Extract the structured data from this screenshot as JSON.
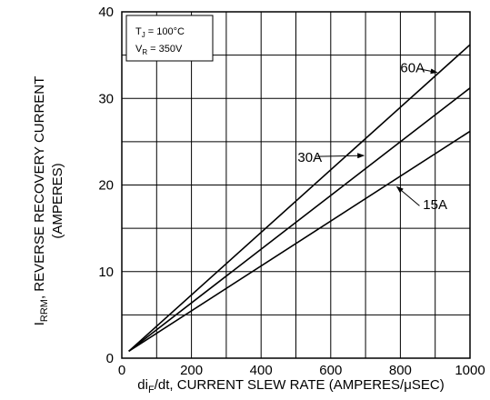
{
  "chart_data": {
    "type": "line",
    "title": "",
    "xlabel": "di_F/dt, CURRENT SLEW RATE (AMPERES/μSEC)",
    "xlabel_parts": {
      "main": "di",
      "sub": "F",
      "rest": "/dt, CURRENT SLEW RATE (AMPERES/μSEC)"
    },
    "ylabel": "I_RRM, REVERSE RECOVERY CURRENT (AMPERES)",
    "ylabel_parts": {
      "main": "I",
      "sub": "RRM",
      "rest": ", REVERSE RECOVERY CURRENT",
      "line2": "(AMPERES)"
    },
    "xlim": [
      0,
      1000
    ],
    "ylim": [
      0,
      40
    ],
    "x_ticks": [
      0,
      200,
      400,
      600,
      800,
      1000
    ],
    "y_ticks": [
      0,
      10,
      20,
      30,
      40
    ],
    "x_minor_step": 100,
    "y_minor_step": 5,
    "grid": true,
    "conditions": {
      "tj_main": "T",
      "tj_sub": "J",
      "tj_rest": " = 100°C",
      "vr_main": "V",
      "vr_sub": "R",
      "vr_rest": " = 350V"
    },
    "series": [
      {
        "name": "60A",
        "x": [
          20,
          1000
        ],
        "y": [
          0.8,
          36.2
        ]
      },
      {
        "name": "30A",
        "x": [
          20,
          1000
        ],
        "y": [
          0.8,
          31.2
        ]
      },
      {
        "name": "15A",
        "x": [
          20,
          1000
        ],
        "y": [
          0.8,
          26.2
        ]
      }
    ],
    "annotations": [
      {
        "text": "60A",
        "text_at": [
          800,
          33.0
        ],
        "arrow_from": [
          855,
          33.4
        ],
        "arrow_to": [
          905,
          33.0
        ]
      },
      {
        "text": "30A",
        "text_at": [
          505,
          22.7
        ],
        "arrow_from": [
          560,
          23.3
        ],
        "arrow_to": [
          695,
          23.4
        ]
      },
      {
        "text": "15A",
        "text_at": [
          865,
          17.2
        ],
        "arrow_from": [
          855,
          17.6
        ],
        "arrow_to": [
          790,
          19.8
        ]
      }
    ],
    "line_color": "#000000",
    "grid_color": "#000000"
  }
}
